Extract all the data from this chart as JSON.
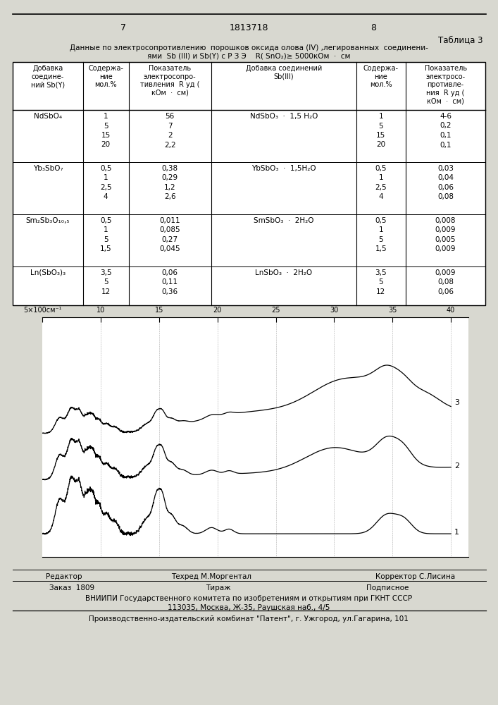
{
  "page_number_left": "7",
  "patent_number": "1813718",
  "page_number_right": "8",
  "table_title": "Таблица 3",
  "table_caption_line1": "Данные по электросопротивлению  порошков оксида олова (IV) ,легированных  соединени-",
  "table_caption_line2": "ями  Sb (III) и Sb(Y) с Р З Э    R( SnO₂)≥ 5000кОм  ·  см",
  "footer_left": "Редактор",
  "footer_center": "Техред М.Моргентал",
  "footer_right": "Корректор С.Лисина",
  "footer2_left": "Заказ  1809",
  "footer2_center": "Тираж",
  "footer2_right": "Подписное",
  "footer3": "ВНИИПИ Государственного комитета по изобретениям и открытиям при ГКНТ СССР",
  "footer4": "113035, Москва, Ж-35, Раушская наб., 4/5",
  "footer5": "Производственно-издательский комбинат \"Патент\", г. Ужгород, ул.Гагарина, 101",
  "bg_color": "#d8d8d0"
}
